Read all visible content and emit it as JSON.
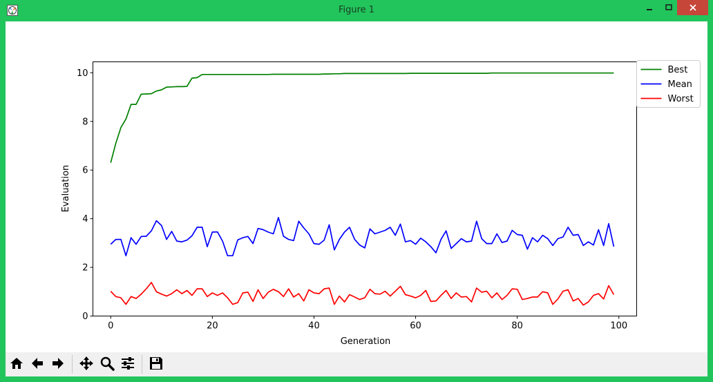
{
  "window": {
    "title": "Figure 1",
    "frame_color": "#21c55b",
    "icons": [
      "matplotlib-app-icon",
      "minimize-icon",
      "maximize-icon",
      "close-icon"
    ]
  },
  "toolbar": {
    "buttons": [
      {
        "name": "home",
        "icon": "home-icon"
      },
      {
        "name": "back",
        "icon": "arrow-left-icon"
      },
      {
        "name": "forward",
        "icon": "arrow-right-icon"
      },
      {
        "name": "pan",
        "icon": "move-icon"
      },
      {
        "name": "zoom",
        "icon": "magnifier-icon"
      },
      {
        "name": "configure-subplots",
        "icon": "sliders-icon"
      },
      {
        "name": "save",
        "icon": "floppy-disk-icon"
      }
    ]
  },
  "chart_data": {
    "type": "line",
    "title": "",
    "xlabel": "Generation",
    "ylabel": "Evaluation",
    "xlim": [
      -3.5,
      103.5
    ],
    "ylim": [
      0,
      10.45
    ],
    "xticks": [
      0,
      20,
      40,
      60,
      80,
      100
    ],
    "yticks": [
      0,
      2,
      4,
      6,
      8,
      10
    ],
    "grid": false,
    "legend": "outside-top-right",
    "x": [
      0,
      1,
      2,
      3,
      4,
      5,
      6,
      7,
      8,
      9,
      10,
      11,
      12,
      13,
      14,
      15,
      16,
      17,
      18,
      19,
      20,
      21,
      22,
      23,
      24,
      25,
      26,
      27,
      28,
      29,
      30,
      31,
      32,
      33,
      34,
      35,
      36,
      37,
      38,
      39,
      40,
      41,
      42,
      43,
      44,
      45,
      46,
      47,
      48,
      49,
      50,
      51,
      52,
      53,
      54,
      55,
      56,
      57,
      58,
      59,
      60,
      61,
      62,
      63,
      64,
      65,
      66,
      67,
      68,
      69,
      70,
      71,
      72,
      73,
      74,
      75,
      76,
      77,
      78,
      79,
      80,
      81,
      82,
      83,
      84,
      85,
      86,
      87,
      88,
      89,
      90,
      91,
      92,
      93,
      94,
      95,
      96,
      97,
      98,
      99
    ],
    "series": [
      {
        "name": "Best",
        "color": "#008000",
        "values": [
          6.3,
          7.1,
          7.75,
          8.1,
          8.7,
          8.7,
          9.12,
          9.13,
          9.14,
          9.25,
          9.3,
          9.41,
          9.42,
          9.43,
          9.43,
          9.44,
          9.78,
          9.8,
          9.93,
          9.93,
          9.93,
          9.93,
          9.93,
          9.93,
          9.93,
          9.93,
          9.93,
          9.93,
          9.93,
          9.93,
          9.93,
          9.93,
          9.94,
          9.94,
          9.94,
          9.94,
          9.94,
          9.94,
          9.94,
          9.94,
          9.94,
          9.94,
          9.95,
          9.95,
          9.96,
          9.96,
          9.97,
          9.97,
          9.97,
          9.97,
          9.97,
          9.97,
          9.97,
          9.97,
          9.97,
          9.97,
          9.97,
          9.97,
          9.97,
          9.98,
          9.98,
          9.98,
          9.98,
          9.98,
          9.98,
          9.98,
          9.98,
          9.98,
          9.98,
          9.98,
          9.98,
          9.98,
          9.98,
          9.98,
          9.98,
          9.99,
          9.99,
          9.99,
          9.99,
          9.99,
          9.99,
          9.99,
          9.99,
          9.99,
          9.99,
          9.99,
          9.99,
          9.99,
          9.99,
          9.99,
          9.99,
          9.99,
          9.99,
          9.99,
          9.99,
          9.99,
          9.99,
          9.99,
          9.99,
          9.99
        ]
      },
      {
        "name": "Mean",
        "color": "#0000ff",
        "values": [
          2.95,
          3.15,
          3.15,
          2.48,
          3.22,
          2.95,
          3.27,
          3.28,
          3.5,
          3.92,
          3.72,
          3.15,
          3.48,
          3.08,
          3.05,
          3.12,
          3.3,
          3.65,
          3.65,
          2.85,
          3.45,
          3.46,
          3.08,
          2.48,
          2.48,
          3.13,
          3.22,
          3.27,
          2.98,
          3.6,
          3.55,
          3.45,
          3.38,
          4.05,
          3.28,
          3.15,
          3.1,
          3.9,
          3.62,
          3.38,
          2.98,
          2.95,
          3.12,
          3.75,
          2.72,
          3.15,
          3.45,
          3.65,
          3.15,
          2.92,
          2.8,
          3.58,
          3.38,
          3.45,
          3.52,
          3.65,
          3.32,
          3.78,
          3.05,
          3.1,
          2.95,
          3.2,
          3.05,
          2.85,
          2.6,
          3.15,
          3.5,
          2.78,
          2.98,
          3.18,
          3.05,
          3.08,
          3.9,
          3.18,
          2.98,
          2.98,
          3.38,
          3.02,
          3.08,
          3.52,
          3.35,
          3.32,
          2.75,
          3.22,
          3.05,
          3.32,
          3.18,
          2.9,
          3.18,
          3.25,
          3.65,
          3.32,
          3.35,
          2.9,
          3.05,
          2.92,
          3.55,
          2.9,
          3.8,
          2.85
        ]
      },
      {
        "name": "Worst",
        "color": "#ff0000",
        "values": [
          1.02,
          0.8,
          0.75,
          0.48,
          0.8,
          0.72,
          0.9,
          1.12,
          1.38,
          1.0,
          0.9,
          0.82,
          0.92,
          1.08,
          0.92,
          1.05,
          0.85,
          1.12,
          1.12,
          0.8,
          0.95,
          0.85,
          0.95,
          0.75,
          0.48,
          0.55,
          0.95,
          0.98,
          0.6,
          1.08,
          0.72,
          0.98,
          1.1,
          1.0,
          0.8,
          1.12,
          0.78,
          0.92,
          0.62,
          1.08,
          0.95,
          0.92,
          1.12,
          1.15,
          0.48,
          0.82,
          0.58,
          0.88,
          0.78,
          0.68,
          0.75,
          1.1,
          0.92,
          0.9,
          1.02,
          0.82,
          1.02,
          1.22,
          0.88,
          0.82,
          0.75,
          0.85,
          1.05,
          0.6,
          0.62,
          0.85,
          1.05,
          0.72,
          0.95,
          0.78,
          0.8,
          0.58,
          1.15,
          0.98,
          1.02,
          0.75,
          0.95,
          0.68,
          0.85,
          1.12,
          1.1,
          0.68,
          0.72,
          0.78,
          0.78,
          1.0,
          0.95,
          0.48,
          0.7,
          1.02,
          1.08,
          0.62,
          0.72,
          0.45,
          0.58,
          0.85,
          0.92,
          0.7,
          1.25,
          0.88
        ]
      }
    ]
  }
}
